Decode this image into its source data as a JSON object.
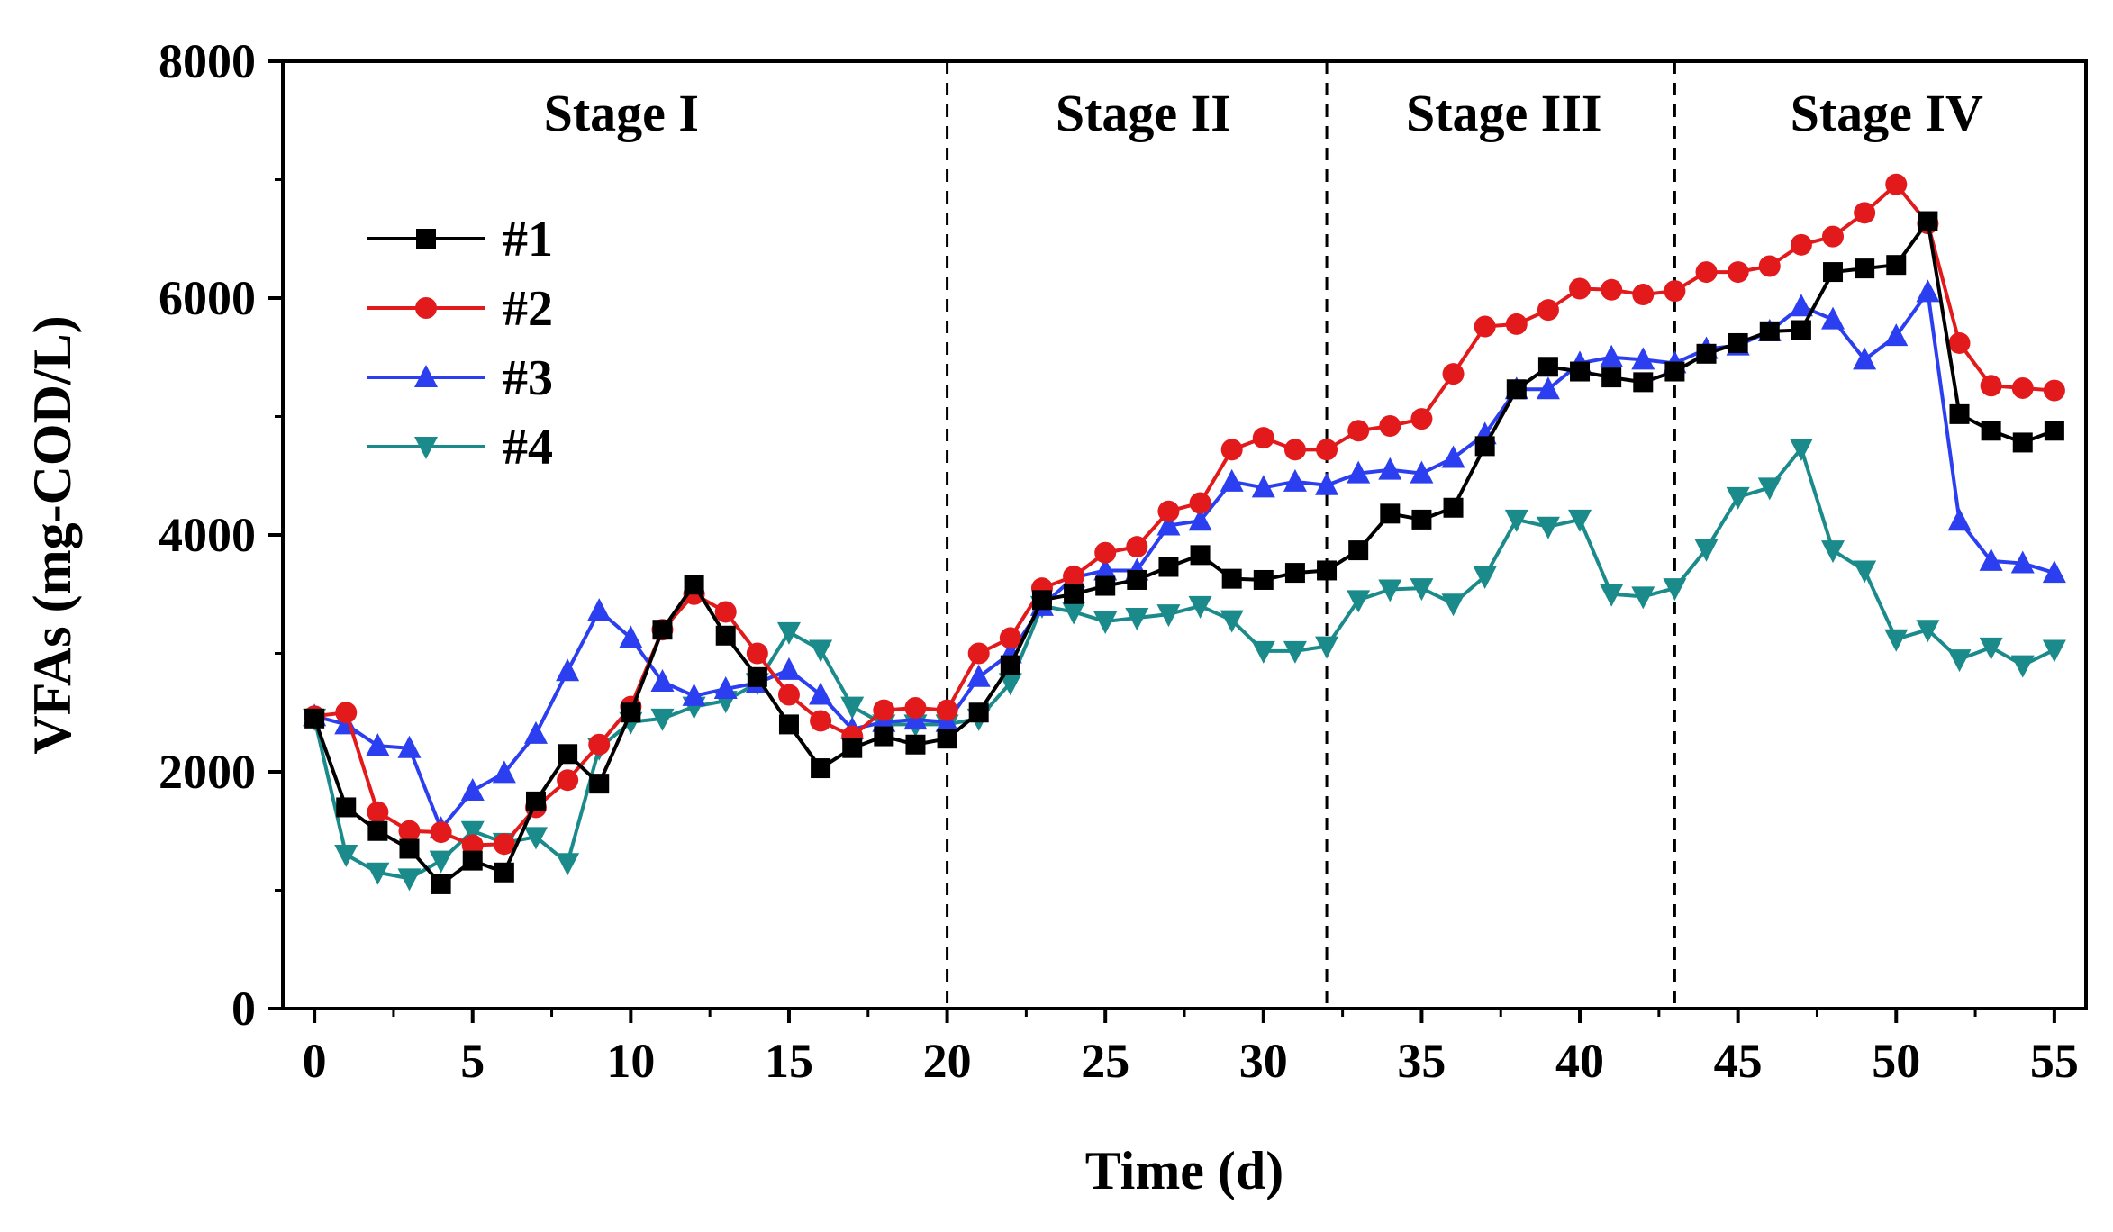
{
  "chart_data": {
    "type": "line",
    "title": "",
    "xlabel": "Time (d)",
    "ylabel": "VFAs (mg-COD/L)",
    "xlim": [
      -1,
      56
    ],
    "ylim": [
      0,
      8000
    ],
    "xticks": [
      0,
      5,
      10,
      15,
      20,
      25,
      30,
      35,
      40,
      45,
      50,
      55
    ],
    "yticks": [
      0,
      2000,
      4000,
      6000,
      8000
    ],
    "grid": false,
    "legend_position": "upper-left",
    "stage_dividers": [
      20,
      32,
      43
    ],
    "stages": [
      {
        "label": "Stage I",
        "x": 9.7
      },
      {
        "label": "Stage II",
        "x": 26.2
      },
      {
        "label": "Stage III",
        "x": 37.6
      },
      {
        "label": "Stage IV",
        "x": 49.7
      }
    ],
    "x": [
      0,
      1,
      2,
      3,
      4,
      5,
      6,
      7,
      8,
      9,
      10,
      11,
      12,
      13,
      14,
      15,
      16,
      17,
      18,
      19,
      20,
      21,
      22,
      23,
      24,
      25,
      26,
      27,
      28,
      29,
      30,
      31,
      32,
      33,
      34,
      35,
      36,
      37,
      38,
      39,
      40,
      41,
      42,
      43,
      44,
      45,
      46,
      47,
      48,
      49,
      50,
      51,
      52,
      53,
      54,
      55
    ],
    "series": [
      {
        "name": "#1",
        "color": "#000000",
        "marker": "square",
        "values": [
          2450,
          1700,
          1500,
          1350,
          1050,
          1250,
          1150,
          1750,
          2150,
          1900,
          2500,
          3200,
          3580,
          3150,
          2800,
          2400,
          2030,
          2200,
          2300,
          2230,
          2280,
          2500,
          2900,
          3450,
          3500,
          3570,
          3620,
          3730,
          3830,
          3630,
          3620,
          3680,
          3700,
          3870,
          4180,
          4130,
          4230,
          4750,
          5230,
          5420,
          5380,
          5330,
          5290,
          5380,
          5530,
          5620,
          5720,
          5730,
          6220,
          6250,
          6280,
          6650,
          5020,
          4880,
          4780,
          4880
        ]
      },
      {
        "name": "#2",
        "color": "#e31a1c",
        "marker": "circle",
        "values": [
          2470,
          2500,
          1660,
          1500,
          1490,
          1380,
          1390,
          1700,
          1930,
          2230,
          2550,
          3200,
          3500,
          3350,
          3000,
          2650,
          2430,
          2300,
          2520,
          2540,
          2520,
          3000,
          3130,
          3550,
          3650,
          3850,
          3900,
          4200,
          4270,
          4720,
          4820,
          4720,
          4720,
          4880,
          4920,
          4980,
          5360,
          5760,
          5780,
          5900,
          6080,
          6070,
          6030,
          6060,
          6220,
          6220,
          6270,
          6450,
          6520,
          6720,
          6960,
          6630,
          5620,
          5260,
          5240,
          5220
        ]
      },
      {
        "name": "#3",
        "color": "#2b3ff0",
        "marker": "triangle-up",
        "values": [
          2470,
          2400,
          2220,
          2200,
          1520,
          1840,
          1990,
          2320,
          2850,
          3360,
          3130,
          2760,
          2640,
          2700,
          2750,
          2860,
          2650,
          2360,
          2420,
          2440,
          2420,
          2800,
          3000,
          3400,
          3640,
          3700,
          3700,
          4080,
          4120,
          4450,
          4400,
          4450,
          4420,
          4520,
          4550,
          4520,
          4650,
          4850,
          5230,
          5230,
          5450,
          5500,
          5480,
          5450,
          5570,
          5600,
          5720,
          5930,
          5820,
          5480,
          5680,
          6050,
          4120,
          3780,
          3760,
          3680
        ]
      },
      {
        "name": "#4",
        "color": "#1a8a8a",
        "marker": "triangle-down",
        "values": [
          2450,
          1300,
          1150,
          1100,
          1250,
          1500,
          1400,
          1450,
          1230,
          2200,
          2420,
          2450,
          2550,
          2600,
          2750,
          3180,
          3030,
          2550,
          2400,
          2400,
          2400,
          2450,
          2750,
          3400,
          3350,
          3270,
          3300,
          3330,
          3400,
          3280,
          3020,
          3020,
          3060,
          3450,
          3540,
          3550,
          3420,
          3650,
          4130,
          4070,
          4130,
          3500,
          3480,
          3550,
          3880,
          4320,
          4400,
          4730,
          3870,
          3700,
          3120,
          3200,
          2950,
          3050,
          2900,
          3030
        ]
      }
    ]
  }
}
